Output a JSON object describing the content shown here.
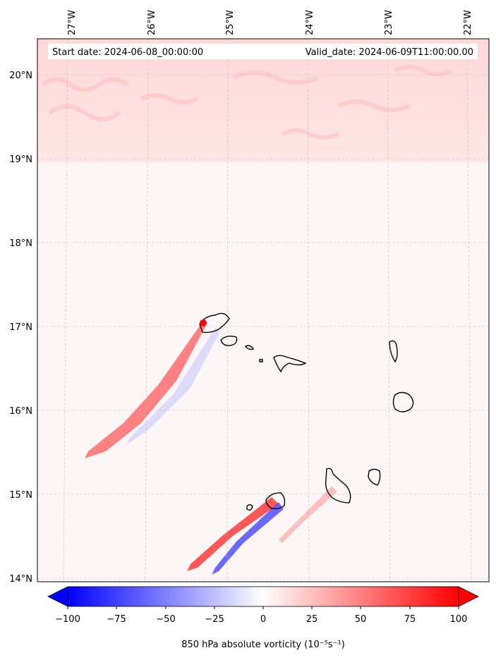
{
  "map": {
    "header": {
      "start": "Start date: 2024-06-08_00:00:00",
      "valid": "Valid_date: 2024-06-09T11:00:00.00"
    },
    "lon_labels": [
      "27°W",
      "26°W",
      "25°W",
      "24°W",
      "23°W",
      "22°W"
    ],
    "lat_labels": [
      "20°N",
      "19°N",
      "18°N",
      "17°N",
      "16°N",
      "15°N",
      "14°N"
    ],
    "extent": {
      "lon_min": -27.35,
      "lon_max": -21.8,
      "lat_min": 13.97,
      "lat_max": 20.43
    }
  },
  "colorbar": {
    "ticks": [
      "−100",
      "−75",
      "−50",
      "−25",
      "0",
      "25",
      "50",
      "75",
      "100"
    ],
    "label": "850 hPa absolute vorticity (10⁻⁵s⁻¹)",
    "min": -100,
    "max": 100,
    "extend": "both",
    "colors": {
      "negative": "#0000ff",
      "zero": "#ffffff",
      "positive": "#ff0000"
    }
  },
  "islands": [
    "Santo Antão",
    "São Vicente",
    "Santa Luzia",
    "São Nicolau",
    "Sal",
    "Boa Vista",
    "Brava",
    "Fogo",
    "Santiago",
    "Maio"
  ]
}
